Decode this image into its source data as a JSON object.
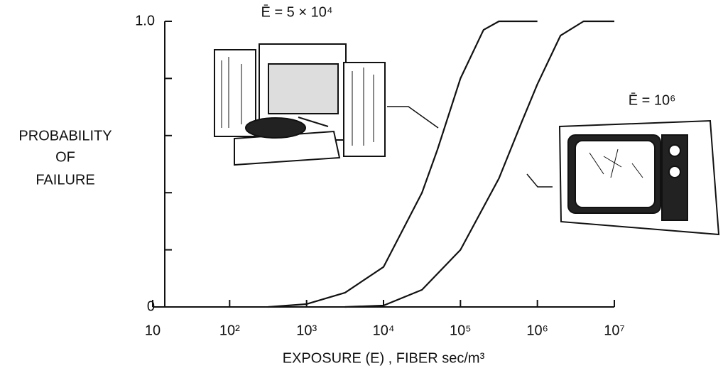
{
  "chart_data": {
    "type": "line",
    "ylabel": [
      "PROBABILITY",
      "OF",
      "FAILURE"
    ],
    "xlabel": "EXPOSURE (E) , FIBER sec/m³",
    "xscale": "log",
    "xlim": [
      10,
      10000000
    ],
    "xticks": [
      10,
      {
        "value": 100,
        "label": "10²"
      },
      {
        "value": 1000,
        "label": "10³"
      },
      {
        "value": 10000,
        "label": "10⁴"
      },
      {
        "value": 100000,
        "label": "10⁵"
      },
      {
        "value": 1000000,
        "label": "10⁶"
      },
      {
        "value": 10000000,
        "label": "10⁷"
      }
    ],
    "ylim": [
      0,
      1
    ],
    "yticks": [
      0,
      {
        "value": 1,
        "label": "1.0"
      }
    ],
    "yminor": [
      0.2,
      0.4,
      0.6,
      0.8
    ],
    "color": "#111111",
    "series": [
      {
        "x": [
          316,
          1000,
          3162,
          10000,
          31623,
          50119,
          100000,
          199526,
          316228,
          1000000
        ],
        "values": [
          0,
          0.01,
          0.05,
          0.14,
          0.4,
          0.55,
          0.8,
          0.97,
          1,
          1
        ]
      },
      {
        "x": [
          3162,
          10000,
          31623,
          100000,
          316228,
          630957,
          1000000,
          1995262,
          3981072,
          10000000
        ],
        "values": [
          0,
          0.005,
          0.06,
          0.2,
          0.45,
          0.65,
          0.78,
          0.95,
          1,
          1
        ]
      }
    ],
    "annotations": [
      "Ē = 5 × 10⁴",
      "Ē = 10⁶"
    ]
  }
}
